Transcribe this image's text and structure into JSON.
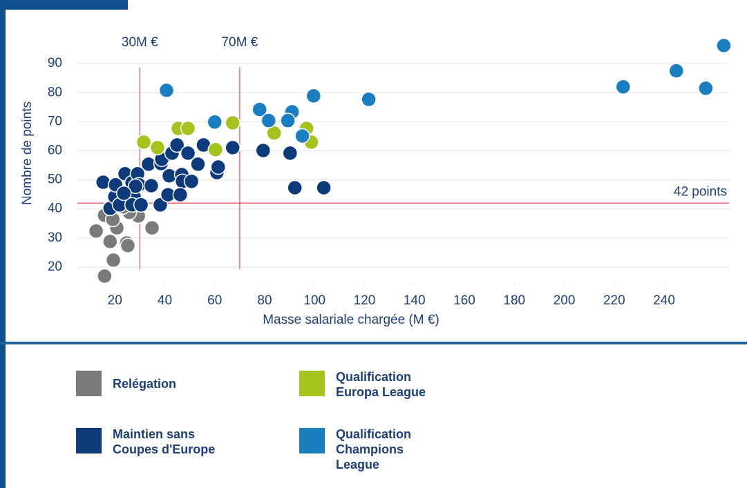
{
  "chart_data": {
    "type": "scatter",
    "xlabel": "Masse salariale chargée (M €)",
    "ylabel": "Nombre de points",
    "xlim": [
      5,
      266
    ],
    "ylim": [
      15,
      100
    ],
    "xticks": [
      20,
      40,
      60,
      80,
      100,
      120,
      140,
      160,
      180,
      200,
      220,
      240
    ],
    "yticks": [
      20,
      30,
      40,
      50,
      60,
      70,
      80,
      90
    ],
    "grid": true,
    "reference_lines": [
      {
        "axis": "x",
        "value": 30,
        "label": "30M €"
      },
      {
        "axis": "x",
        "value": 70,
        "label": "70M €"
      },
      {
        "axis": "y",
        "value": 42,
        "label": "42 points"
      }
    ],
    "series": [
      {
        "name": "Relégation",
        "color": "#7a7a7a",
        "x": [
          12.5,
          15.9,
          15.9,
          18.1,
          19.4,
          20.8,
          19.2,
          24.7,
          25.2,
          29.4,
          25.8,
          34.9,
          23.3
        ],
        "values": [
          32.4,
          16.9,
          37.8,
          28.8,
          22.4,
          33.5,
          36.4,
          28.3,
          27.4,
          37.6,
          38.8,
          33.5,
          40.7
        ]
      },
      {
        "name": "Maintien sans Coupes d'Europe",
        "color": "#0d3a7a",
        "x": [
          15.3,
          18.1,
          20,
          20.3,
          21.9,
          24.1,
          25.5,
          26.9,
          27.7,
          29.1,
          29.7,
          26.9,
          30.5,
          28.3,
          23.6,
          33.5,
          34.6,
          38.5,
          38.8,
          38.2,
          41.3,
          41.8,
          42.9,
          44.9,
          46.8,
          47.1,
          46.2,
          49.3,
          50.7,
          53.3,
          55.5,
          60.9,
          61.4,
          67.2,
          79.4,
          90.2,
          92.1,
          103.7
        ],
        "values": [
          49.2,
          40.2,
          44.2,
          48.3,
          41.4,
          52.1,
          45.9,
          49,
          44.2,
          52.1,
          48.3,
          41.4,
          41.4,
          47.8,
          45.4,
          55.4,
          48,
          55.6,
          57.1,
          41.4,
          44.9,
          51.4,
          59.2,
          62,
          51.8,
          49.5,
          44.9,
          59.2,
          49.5,
          55.4,
          62,
          52.5,
          54.4,
          61.1,
          60.1,
          59.2,
          47.3,
          47.3
        ]
      },
      {
        "name": "Qualification Europa League",
        "color": "#a4c31c",
        "x": [
          31.6,
          37.1,
          45.4,
          49.3,
          67.2,
          60.3,
          83.8,
          96.8,
          98.7
        ],
        "values": [
          63,
          61.1,
          67.7,
          67.7,
          69.6,
          60.4,
          66.1,
          67.7,
          63
        ]
      },
      {
        "name": "Qualification Champions League",
        "color": "#1a7fc1",
        "x": [
          40.7,
          60,
          78,
          81.6,
          91,
          89.3,
          95.1,
          99.6,
          121.7,
          223.6,
          244.9,
          256.7,
          263.9
        ],
        "values": [
          80.8,
          69.9,
          74.2,
          70.4,
          73.4,
          70.4,
          65.1,
          78.9,
          77.7,
          82,
          87.5,
          81.5,
          96.2
        ]
      }
    ]
  }
}
